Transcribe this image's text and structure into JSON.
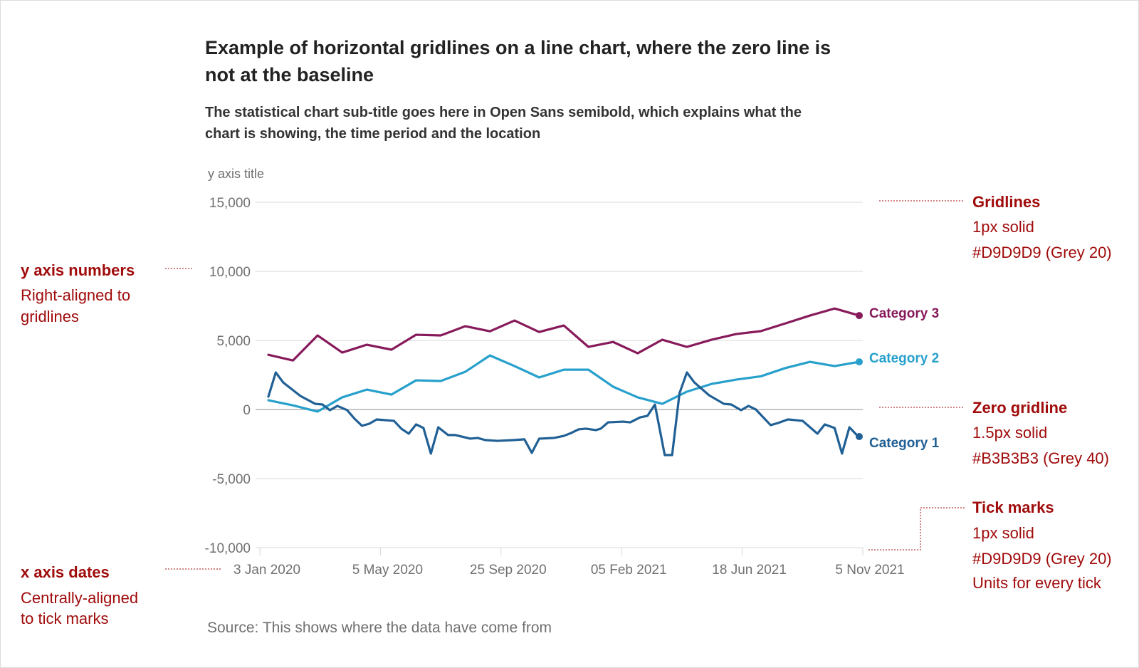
{
  "title_lines": [
    "Example of horizontal gridlines on a line chart, where the zero line is",
    "not at the baseline"
  ],
  "subtitle_lines": [
    "The statistical chart sub-title goes here in Open Sans semibold, which explains what the",
    "chart is showing, the time period and the location"
  ],
  "source": "Source: This shows where the data have come from",
  "annotation_color": "#A00B0B",
  "annotations": {
    "y_axis_numbers": {
      "head": "y axis numbers",
      "lines": [
        "Right-aligned to",
        "gridlines"
      ]
    },
    "x_axis_dates": {
      "head": "x axis dates",
      "lines": [
        "Centrally-aligned",
        "to tick marks"
      ]
    },
    "gridlines": {
      "head": "Gridlines",
      "lines": [
        "1px solid",
        "#D9D9D9 (Grey 20)"
      ]
    },
    "zero_gridline": {
      "head": "Zero gridline",
      "lines": [
        "1.5px solid",
        "#B3B3B3 (Grey 40)"
      ]
    },
    "tick_marks": {
      "head": "Tick marks",
      "lines": [
        "1px solid",
        "#D9D9D9 (Grey 20)",
        "Units for every tick"
      ]
    }
  },
  "chart_data": {
    "type": "line",
    "ylabel": "y axis title",
    "xlabel": "",
    "ylim": [
      -10000,
      15000
    ],
    "yticks": [
      15000,
      10000,
      5000,
      0,
      -5000,
      -10000
    ],
    "ytick_labels": [
      "15,000",
      "10,000",
      "5,000",
      "0",
      "-5,000",
      "-10,000"
    ],
    "xtick_labels": [
      "3 Jan 2020",
      "5 May 2020",
      "25 Sep 2020",
      "05 Feb 2021",
      "18 Jun 2021",
      "5 Nov 2021"
    ],
    "grid": "horizontal",
    "gridline_color": "#D9D9D9",
    "zero_line_color": "#B3B3B3",
    "legend": "direct labels at line ends (right)",
    "series": [
      {
        "name": "Category 3",
        "color": "#871A5B",
        "values": [
          3960,
          3550,
          5360,
          4120,
          4690,
          4330,
          5410,
          5360,
          6030,
          5660,
          6440,
          5610,
          6080,
          4530,
          4890,
          4070,
          5050,
          4530,
          5050,
          5460,
          5670,
          6230,
          6800,
          7310,
          6800
        ]
      },
      {
        "name": "Category 2",
        "color": "#27A0CC",
        "values": [
          670,
          300,
          -150,
          880,
          1440,
          1080,
          2110,
          2060,
          2730,
          3910,
          3140,
          2320,
          2880,
          2880,
          1650,
          880,
          410,
          1290,
          1850,
          2160,
          2400,
          3000,
          3450,
          3140,
          3450
        ]
      },
      {
        "name": "Category 1",
        "color": "#206095",
        "points": [
          [
            0,
            930
          ],
          [
            0.3,
            2680
          ],
          [
            0.6,
            1960
          ],
          [
            1.3,
            980
          ],
          [
            1.9,
            410
          ],
          [
            2.2,
            360
          ],
          [
            2.5,
            -50
          ],
          [
            2.8,
            260
          ],
          [
            3.2,
            -50
          ],
          [
            3.5,
            -670
          ],
          [
            3.8,
            -1180
          ],
          [
            4.1,
            -1030
          ],
          [
            4.4,
            -720
          ],
          [
            5.1,
            -820
          ],
          [
            5.4,
            -1390
          ],
          [
            5.7,
            -1750
          ],
          [
            6.0,
            -1080
          ],
          [
            6.3,
            -1340
          ],
          [
            6.6,
            -3190
          ],
          [
            6.9,
            -1290
          ],
          [
            7.3,
            -1850
          ],
          [
            7.6,
            -1850
          ],
          [
            8.2,
            -2110
          ],
          [
            8.5,
            -2060
          ],
          [
            8.8,
            -2210
          ],
          [
            9.3,
            -2270
          ],
          [
            10.0,
            -2210
          ],
          [
            10.4,
            -2160
          ],
          [
            10.7,
            -3140
          ],
          [
            11.0,
            -2110
          ],
          [
            11.6,
            -2060
          ],
          [
            12.0,
            -1910
          ],
          [
            12.3,
            -1700
          ],
          [
            12.6,
            -1440
          ],
          [
            12.9,
            -1390
          ],
          [
            13.3,
            -1490
          ],
          [
            13.5,
            -1390
          ],
          [
            13.8,
            -930
          ],
          [
            14.4,
            -880
          ],
          [
            14.7,
            -930
          ],
          [
            15.1,
            -570
          ],
          [
            15.4,
            -460
          ],
          [
            15.7,
            360
          ],
          [
            16.1,
            -3300
          ],
          [
            16.4,
            -3300
          ],
          [
            16.7,
            1180
          ],
          [
            17.0,
            2680
          ],
          [
            17.3,
            1960
          ],
          [
            17.9,
            1030
          ],
          [
            18.5,
            410
          ],
          [
            18.8,
            360
          ],
          [
            19.2,
            -50
          ],
          [
            19.5,
            260
          ],
          [
            19.8,
            0
          ],
          [
            20.4,
            -1130
          ],
          [
            20.7,
            -980
          ],
          [
            21.1,
            -720
          ],
          [
            21.7,
            -820
          ],
          [
            22.3,
            -1750
          ],
          [
            22.6,
            -1080
          ],
          [
            23.0,
            -1340
          ],
          [
            23.3,
            -3190
          ],
          [
            23.6,
            -1290
          ],
          [
            23.9,
            -1850
          ],
          [
            24.0,
            -1960
          ]
        ]
      }
    ]
  }
}
